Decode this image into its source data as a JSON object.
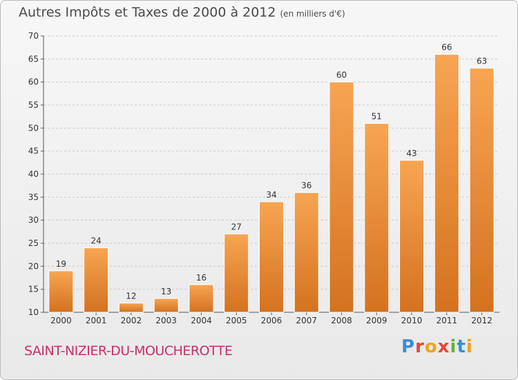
{
  "title": "Autres Impôts et Taxes de 2000 à 2012",
  "subtitle": "(en milliers d'€)",
  "commune": "SAINT-NIZIER-DU-MOUCHEROTTE",
  "logo": {
    "p": "P",
    "r": "r",
    "o": "o",
    "x": "x",
    "i": "i",
    "t": "t",
    "i2": "i"
  },
  "colors": {
    "bar": "#f0913a",
    "bar_dark": "#d46e1a",
    "commune": "#cc2d6b"
  },
  "chart_data": {
    "type": "bar",
    "title": "Autres Impôts et Taxes de 2000 à 2012",
    "subtitle": "(en milliers d'€)",
    "categories": [
      "2000",
      "2001",
      "2002",
      "2003",
      "2004",
      "2005",
      "2006",
      "2007",
      "2008",
      "2009",
      "2010",
      "2011",
      "2012"
    ],
    "values": [
      19,
      24,
      12,
      13,
      16,
      27,
      34,
      36,
      60,
      51,
      43,
      66,
      63
    ],
    "ylim": [
      10,
      70
    ],
    "yticks": [
      10,
      15,
      20,
      25,
      30,
      35,
      40,
      45,
      50,
      55,
      60,
      65,
      70
    ],
    "grid": true,
    "data_labels": true
  }
}
